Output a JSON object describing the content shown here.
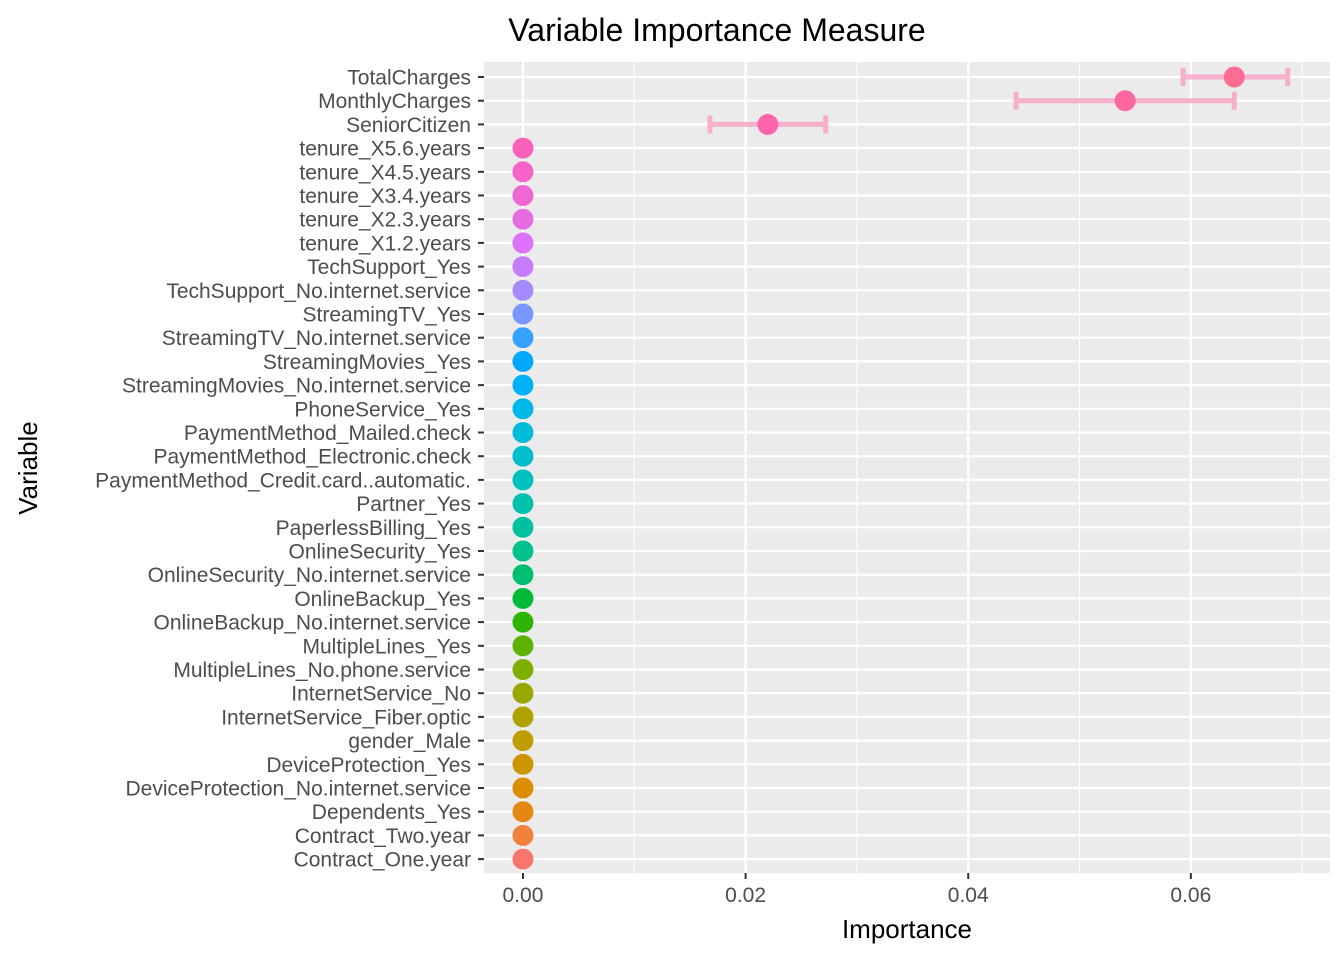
{
  "chart_data": {
    "type": "scatter",
    "title": "Variable Importance Measure",
    "xlabel": "Importance",
    "ylabel": "Variable",
    "xlim": [
      -0.0035,
      0.0725
    ],
    "x_ticks": [
      0.0,
      0.02,
      0.04,
      0.06
    ],
    "x_tick_labels": [
      "0.00",
      "0.02",
      "0.04",
      "0.06"
    ],
    "grid": true,
    "legend": "none",
    "categories": [
      "TotalCharges",
      "MonthlyCharges",
      "SeniorCitizen",
      "tenure_X5.6.years",
      "tenure_X4.5.years",
      "tenure_X3.4.years",
      "tenure_X2.3.years",
      "tenure_X1.2.years",
      "TechSupport_Yes",
      "TechSupport_No.internet.service",
      "StreamingTV_Yes",
      "StreamingTV_No.internet.service",
      "StreamingMovies_Yes",
      "StreamingMovies_No.internet.service",
      "PhoneService_Yes",
      "PaymentMethod_Mailed.check",
      "PaymentMethod_Electronic.check",
      "PaymentMethod_Credit.card..automatic.",
      "Partner_Yes",
      "PaperlessBilling_Yes",
      "OnlineSecurity_Yes",
      "OnlineSecurity_No.internet.service",
      "OnlineBackup_Yes",
      "OnlineBackup_No.internet.service",
      "MultipleLines_Yes",
      "MultipleLines_No.phone.service",
      "InternetService_No",
      "InternetService_Fiber.optic",
      "gender_Male",
      "DeviceProtection_Yes",
      "DeviceProtection_No.internet.service",
      "Dependents_Yes",
      "Contract_Two.year",
      "Contract_One.year"
    ],
    "values": [
      0.0639,
      0.0541,
      0.022,
      0,
      0,
      0,
      0,
      0,
      0,
      0,
      0,
      0,
      0,
      0,
      0,
      0,
      0,
      0,
      0,
      0,
      0,
      0,
      0,
      0,
      0,
      0,
      0,
      0,
      0,
      0,
      0,
      0,
      0,
      0
    ],
    "error_bars": [
      {
        "variable": "TotalCharges",
        "low": 0.0593,
        "high": 0.0687
      },
      {
        "variable": "MonthlyCharges",
        "low": 0.0443,
        "high": 0.0639
      },
      {
        "variable": "SeniorCitizen",
        "low": 0.0168,
        "high": 0.0272
      }
    ],
    "colors": [
      "#FF6C91",
      "#FF689F",
      "#FF65AC",
      "#FC61BA",
      "#F763C7",
      "#F066D3",
      "#E76BE0",
      "#DC71FA",
      "#C77CFF",
      "#A58AFF",
      "#7997FF",
      "#35A2FF",
      "#00A9FF",
      "#00B0F6",
      "#00B8E7",
      "#00BBDA",
      "#00BECD",
      "#00C0BE",
      "#00C1AE",
      "#00C19E",
      "#00C08B",
      "#00BE70",
      "#00BA38",
      "#2CB400",
      "#5DB100",
      "#7FAE00",
      "#99A800",
      "#ADA200",
      "#BD9D00",
      "#CC9600",
      "#DA8F00",
      "#E68613",
      "#F2813C",
      "#F8766D"
    ],
    "error_bar_color": "#F8A4C6"
  }
}
